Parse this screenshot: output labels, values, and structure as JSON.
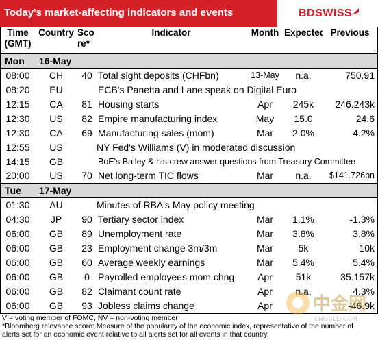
{
  "header": {
    "title": "Today's market-affecting indicators and events",
    "logo": "BDSWISS",
    "colors": {
      "brand_red": "#d41f26",
      "day_bar": "#d9d9d9"
    }
  },
  "columns": {
    "time_l1": "Time",
    "time_l2": "(GMT)",
    "country": "Country",
    "score_l1": "Sco",
    "score_l2": "re*",
    "indicator": "Indicator",
    "month": "Month",
    "expected": "Expected",
    "previous": "Previous"
  },
  "days": [
    {
      "day": "Mon",
      "date": "16-May",
      "rows": [
        {
          "time": "08:00",
          "country": "CH",
          "score": "40",
          "indicator": "Total sight deposits (CHFbn)",
          "month": "13-May",
          "expected": "n.a.",
          "previous": "750.91"
        },
        {
          "time": "08:20",
          "country": "EU",
          "score": "",
          "indicator": "ECB's Panetta and Lane speak on Digital Euro",
          "month": "",
          "expected": "",
          "previous": ""
        },
        {
          "time": "12:15",
          "country": "CA",
          "score": "81",
          "indicator": "Housing starts",
          "month": "Apr",
          "expected": "245k",
          "previous": "246.243k"
        },
        {
          "time": "12:30",
          "country": "US",
          "score": "82",
          "indicator": "Empire manufacturing index",
          "month": "May",
          "expected": "15.0",
          "previous": "24.6"
        },
        {
          "time": "12:30",
          "country": "CA",
          "score": "69",
          "indicator": "Manufacturing sales (mom)",
          "month": "Mar",
          "expected": "2.0%",
          "previous": "4.2%"
        },
        {
          "time": "12:55",
          "country": "US",
          "score": "",
          "indicator": "NY Fed's Williams (V) in moderated discussion",
          "month": "",
          "expected": "",
          "previous": ""
        },
        {
          "time": "14:15",
          "country": "GB",
          "score": "",
          "indicator": "BoE's Bailey & his crew answer questions from Treasury Committee",
          "month": "",
          "expected": "",
          "previous": ""
        },
        {
          "time": "20:00",
          "country": "US",
          "score": "70",
          "indicator": "Net long-term TIC flows",
          "month": "Mar",
          "expected": "n.a.",
          "previous": "$141.726bn"
        }
      ]
    },
    {
      "day": "Tue",
      "date": "17-May",
      "rows": [
        {
          "time": "01:30",
          "country": "AU",
          "score": "",
          "indicator": "Minutes of RBA's May policy meeting",
          "month": "",
          "expected": "",
          "previous": ""
        },
        {
          "time": "04:30",
          "country": "JP",
          "score": "90",
          "indicator": "Tertiary sector index",
          "month": "Mar",
          "expected": "1.1%",
          "previous": "-1.3%"
        },
        {
          "time": "06:00",
          "country": "GB",
          "score": "89",
          "indicator": "Unemployment rate",
          "month": "Mar",
          "expected": "3.8%",
          "previous": "3.8%"
        },
        {
          "time": "06:00",
          "country": "GB",
          "score": "23",
          "indicator": "Employment change 3m/3m",
          "month": "Mar",
          "expected": "5k",
          "previous": "10k"
        },
        {
          "time": "06:00",
          "country": "GB",
          "score": "60",
          "indicator": "Average weekly earnings",
          "month": "Mar",
          "expected": "5.4%",
          "previous": "5.4%"
        },
        {
          "time": "06:00",
          "country": "GB",
          "score": "0",
          "indicator": "Payrolled employees mom chng",
          "month": "Apr",
          "expected": "51k",
          "previous": "35.157k"
        },
        {
          "time": "06:00",
          "country": "GB",
          "score": "82",
          "indicator": "Claimant count rate",
          "month": "Apr",
          "expected": "n.a.",
          "previous": "4.3%"
        },
        {
          "time": "06:00",
          "country": "GB",
          "score": "93",
          "indicator": "Jobless claims change",
          "month": "Apr",
          "expected": "",
          "previous": "-46.9k"
        }
      ]
    }
  ],
  "footer": {
    "line1": "V = voting member of FOMC, NV = non-voting member",
    "line2": "*Bloomberg relevance score:  Measure of the popularity of the economic index, representative of the number of",
    "line3": "alerts set for an economic event relative to all alerts set for all events in that country."
  },
  "watermark": {
    "brand": "中金网",
    "url": "CNGOLD.COM"
  }
}
